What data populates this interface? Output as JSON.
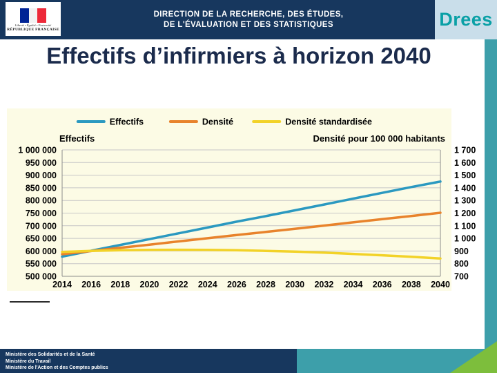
{
  "header": {
    "marianne": {
      "motto": "Liberté • Égalité • Fraternité",
      "republic": "RÉPUBLIQUE FRANÇAISE"
    },
    "org_line1": "DIRECTION DE LA RECHERCHE, DES ÉTUDES,",
    "org_line2": "DE L'ÉVALUATION ET DES STATISTIQUES",
    "drees_logo_text": "Drees"
  },
  "title": "Effectifs d’infirmiers à horizon 2040",
  "chart_data": {
    "type": "line",
    "x": [
      2014,
      2016,
      2018,
      2020,
      2022,
      2024,
      2026,
      2028,
      2030,
      2032,
      2034,
      2036,
      2038,
      2040
    ],
    "series": [
      {
        "name": "Effectifs",
        "axis": "left",
        "color": "#2B99C0",
        "values": [
          578000,
          601000,
          624000,
          647000,
          670000,
          693000,
          716000,
          738000,
          761000,
          784000,
          807000,
          830000,
          853000,
          875000
        ]
      },
      {
        "name": "Densité",
        "axis": "right",
        "color": "#E8832C",
        "values": [
          875,
          900,
          925,
          950,
          976,
          1001,
          1026,
          1051,
          1076,
          1101,
          1127,
          1152,
          1177,
          1203
        ]
      },
      {
        "name": "Densité standardisée",
        "axis": "right",
        "color": "#F2D228",
        "values": [
          893,
          901,
          906,
          909,
          910,
          909,
          906,
          901,
          895,
          887,
          877,
          866,
          854,
          841
        ]
      }
    ],
    "left_axis": {
      "title": "Effectifs",
      "min": 500000,
      "max": 1000000,
      "step": 50000
    },
    "right_axis": {
      "title": "Densité pour 100 000 habitants",
      "min": 700,
      "max": 1700,
      "step": 100
    },
    "legend_position": "top",
    "grid": true
  },
  "footer": {
    "lines": [
      "Ministère des Solidarités et de la Santé",
      "Ministère du Travail",
      "Ministère de l'Action et des Comptes publics"
    ]
  },
  "colors": {
    "band_navy": "#17375E",
    "teal": "#3D9FAA",
    "green_accent": "#7DBE3C",
    "drees_bg": "#C9DEEA",
    "drees_text": "#0AA0A6",
    "title_text": "#1B2B4C",
    "chart_bg": "#FCFBE5",
    "grid_line": "#C6C6C6",
    "axis_line": "#8C8C8C"
  }
}
